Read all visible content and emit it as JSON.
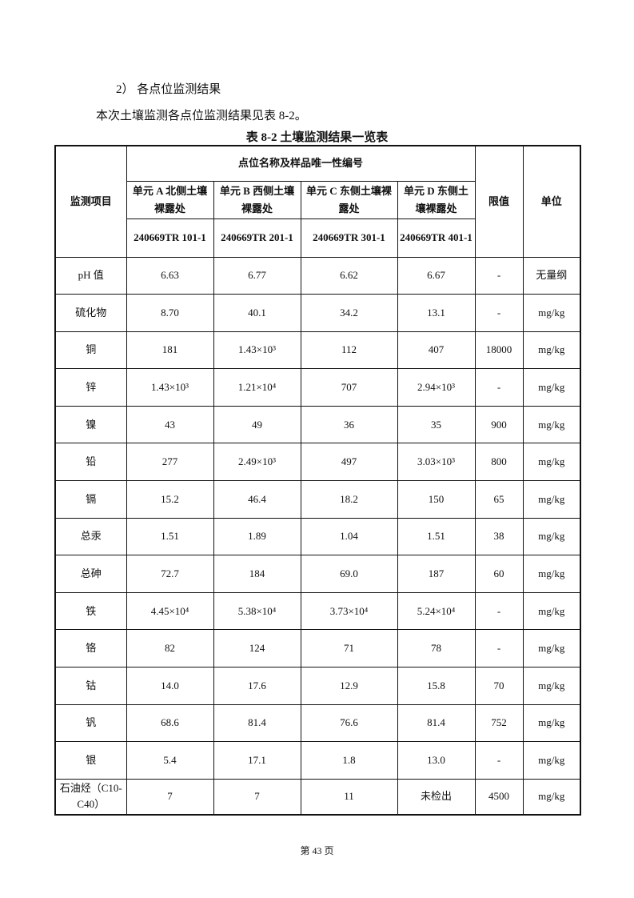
{
  "heading": "2） 各点位监测结果",
  "intro": "本次土壤监测各点位监测结果见表 8-2。",
  "caption": "表 8-2   土壤监测结果一览表",
  "table": {
    "col_item": "监测项目",
    "group_header": "点位名称及样品唯一性编号",
    "col_limit": "限值",
    "col_unit": "单位",
    "sites": [
      {
        "name": "单元 A 北侧土壤裸露处",
        "code": "240669TR 101-1"
      },
      {
        "name": "单元 B 西侧土壤裸露处",
        "code": "240669TR 201-1"
      },
      {
        "name": "单元 C 东侧土壤裸露处",
        "code": "240669TR 301-1"
      },
      {
        "name": "单元 D 东侧土壤裸露处",
        "code": "240669TR 401-1"
      }
    ],
    "rows": [
      {
        "item": "pH 值",
        "values": [
          "6.63",
          "6.77",
          "6.62",
          "6.67"
        ],
        "limit": "-",
        "unit": "无量纲"
      },
      {
        "item": "硫化物",
        "values": [
          "8.70",
          "40.1",
          "34.2",
          "13.1"
        ],
        "limit": "-",
        "unit": "mg/kg"
      },
      {
        "item": "铜",
        "values": [
          "181",
          "1.43×10³",
          "112",
          "407"
        ],
        "limit": "18000",
        "unit": "mg/kg"
      },
      {
        "item": "锌",
        "values": [
          "1.43×10³",
          "1.21×10⁴",
          "707",
          "2.94×10³"
        ],
        "limit": "-",
        "unit": "mg/kg"
      },
      {
        "item": "镍",
        "values": [
          "43",
          "49",
          "36",
          "35"
        ],
        "limit": "900",
        "unit": "mg/kg"
      },
      {
        "item": "铅",
        "values": [
          "277",
          "2.49×10³",
          "497",
          "3.03×10³"
        ],
        "limit": "800",
        "unit": "mg/kg"
      },
      {
        "item": "镉",
        "values": [
          "15.2",
          "46.4",
          "18.2",
          "150"
        ],
        "limit": "65",
        "unit": "mg/kg"
      },
      {
        "item": "总汞",
        "values": [
          "1.51",
          "1.89",
          "1.04",
          "1.51"
        ],
        "limit": "38",
        "unit": "mg/kg"
      },
      {
        "item": "总砷",
        "values": [
          "72.7",
          "184",
          "69.0",
          "187"
        ],
        "limit": "60",
        "unit": "mg/kg"
      },
      {
        "item": "铁",
        "values": [
          "4.45×10⁴",
          "5.38×10⁴",
          "3.73×10⁴",
          "5.24×10⁴"
        ],
        "limit": "-",
        "unit": "mg/kg"
      },
      {
        "item": "铬",
        "values": [
          "82",
          "124",
          "71",
          "78"
        ],
        "limit": "-",
        "unit": "mg/kg"
      },
      {
        "item": "钴",
        "values": [
          "14.0",
          "17.6",
          "12.9",
          "15.8"
        ],
        "limit": "70",
        "unit": "mg/kg"
      },
      {
        "item": "钒",
        "values": [
          "68.6",
          "81.4",
          "76.6",
          "81.4"
        ],
        "limit": "752",
        "unit": "mg/kg"
      },
      {
        "item": "银",
        "values": [
          "5.4",
          "17.1",
          "1.8",
          "13.0"
        ],
        "limit": "-",
        "unit": "mg/kg"
      },
      {
        "item": "石油烃（C10-C40）",
        "values": [
          "7",
          "7",
          "11",
          "未检出"
        ],
        "limit": "4500",
        "unit": "mg/kg"
      }
    ]
  },
  "footer": "第 43 页"
}
